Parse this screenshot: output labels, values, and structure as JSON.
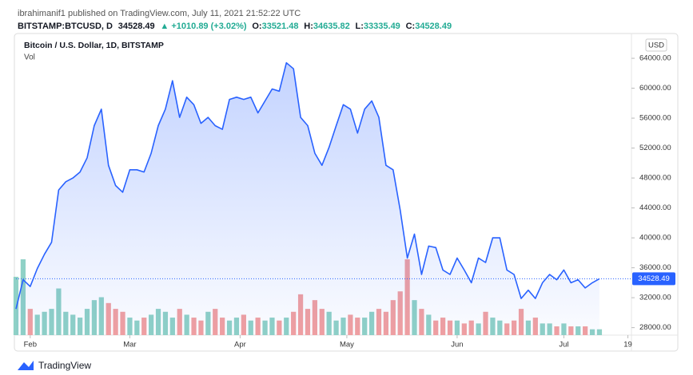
{
  "header": "ibrahimanif1 published on TradingView.com, July 11, 2021 21:52:22 UTC",
  "symbol": "BITSTAMP:BTCUSD, D",
  "last": "34528.49",
  "change": "▲ +1010.89 (+3.02%)",
  "ohlc": [
    {
      "label": "O:",
      "value": "33521.48"
    },
    {
      "label": "H:",
      "value": "34635.82"
    },
    {
      "label": "L:",
      "value": "33335.49"
    },
    {
      "label": "C:",
      "value": "34528.49"
    }
  ],
  "currency": "USD",
  "brand": "TradingView",
  "chart_data": {
    "type": "area",
    "title": "Bitcoin / U.S. Dollar, 1D, BITSTAMP",
    "color": "#2962ff",
    "x": [
      28,
      30,
      32,
      34,
      36,
      38,
      40,
      42,
      44,
      46,
      48,
      50,
      52,
      54,
      56,
      58,
      60,
      62,
      64,
      66,
      68,
      70,
      72,
      74,
      76,
      78,
      80,
      82,
      84,
      86,
      88,
      90,
      92,
      94,
      96,
      98,
      100,
      102,
      104,
      106,
      108,
      110,
      112,
      114,
      116,
      118,
      120,
      122,
      124,
      126,
      128,
      130,
      132,
      134,
      136,
      138,
      140,
      142,
      144,
      146,
      148,
      150,
      152,
      154,
      156,
      158,
      160,
      162,
      164,
      166,
      168,
      170,
      172,
      174,
      176,
      178,
      180,
      182,
      184,
      186,
      188,
      190,
      192
    ],
    "values": [
      30500,
      34400,
      33500,
      35900,
      37800,
      39400,
      46400,
      47500,
      48000,
      48800,
      50700,
      55000,
      57200,
      49700,
      47000,
      46100,
      49100,
      49100,
      48800,
      51300,
      55000,
      57200,
      61000,
      56100,
      58800,
      57800,
      55300,
      56100,
      55000,
      54500,
      58500,
      58800,
      58500,
      58800,
      56700,
      58300,
      59900,
      59600,
      63400,
      62600,
      56100,
      55000,
      51300,
      49700,
      52100,
      55000,
      57800,
      57200,
      54000,
      57200,
      58300,
      56100,
      49700,
      49100,
      43700,
      37300,
      40500,
      35100,
      38900,
      38700,
      35700,
      35100,
      37300,
      35700,
      34000,
      37300,
      36700,
      40000,
      40000,
      35700,
      35100,
      31900,
      33000,
      31900,
      34000,
      35100,
      34400,
      35700,
      34000,
      34400,
      33300,
      34000,
      34528.49
    ],
    "volume": {
      "name": "Vol",
      "up_color": "#8fd1c6",
      "down_color": "#f2a0a0",
      "values": [
        20000,
        26000,
        9000,
        7000,
        8000,
        9000,
        16000,
        8000,
        7000,
        6000,
        9000,
        12000,
        13000,
        11000,
        9000,
        8000,
        6000,
        5000,
        6000,
        7000,
        9000,
        8000,
        6000,
        9000,
        7000,
        6000,
        5000,
        8000,
        9000,
        6000,
        5000,
        6000,
        7000,
        5000,
        6000,
        5000,
        6000,
        5000,
        6000,
        8000,
        14000,
        9000,
        12000,
        9000,
        8000,
        5000,
        6000,
        7000,
        6000,
        6000,
        8000,
        9000,
        8000,
        12000,
        15000,
        26000,
        12000,
        9000,
        7000,
        5000,
        6000,
        5000,
        5000,
        4000,
        5000,
        4000,
        8000,
        6000,
        5000,
        4000,
        5000,
        9000,
        5000,
        6000,
        4000,
        4000,
        3000,
        4000,
        3000,
        3000,
        3000,
        2000,
        2000
      ]
    },
    "xlim": [
      28,
      201
    ],
    "xticks": [
      {
        "value": 32,
        "label": "Feb"
      },
      {
        "value": 60,
        "label": "Mar"
      },
      {
        "value": 91,
        "label": "Apr"
      },
      {
        "value": 121,
        "label": "May"
      },
      {
        "value": 152,
        "label": "Jun"
      },
      {
        "value": 182,
        "label": "Jul"
      },
      {
        "value": 200,
        "label": "19"
      }
    ],
    "ylim": [
      27000,
      67100
    ],
    "yticks": [
      {
        "value": 28000,
        "label": "28000.00"
      },
      {
        "value": 32000,
        "label": "32000.00"
      },
      {
        "value": 36000,
        "label": "36000.00"
      },
      {
        "value": 40000,
        "label": "40000.00"
      },
      {
        "value": 44000,
        "label": "44000.00"
      },
      {
        "value": 48000,
        "label": "48000.00"
      },
      {
        "value": 52000,
        "label": "52000.00"
      },
      {
        "value": 56000,
        "label": "56000.00"
      },
      {
        "value": 60000,
        "label": "60000.00"
      },
      {
        "value": 64000,
        "label": "64000.00"
      }
    ],
    "grid": false
  }
}
